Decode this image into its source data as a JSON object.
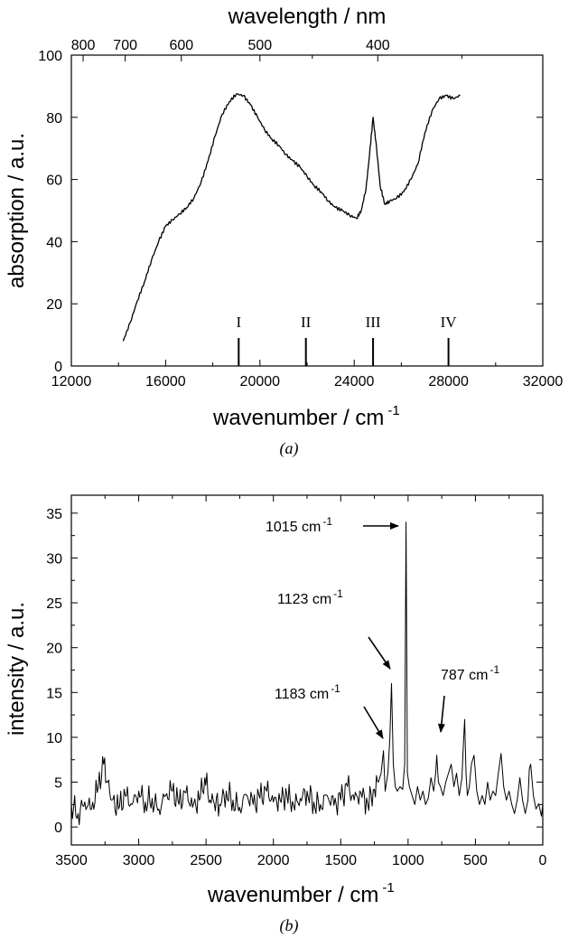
{
  "chart_data": [
    {
      "type": "line",
      "panel_label": "(a)",
      "xlabel": "wavenumber  /  cm",
      "xlabel_sup": "-1",
      "ylabel": "absorption  /  a.u.",
      "top_axis_label": "wavelength  /  nm",
      "xlim": [
        12000,
        32000
      ],
      "ylim": [
        0,
        100
      ],
      "x_ticks": [
        "12000",
        "16000",
        "20000",
        "24000",
        "28000",
        "32000"
      ],
      "y_ticks": [
        "0",
        "20",
        "40",
        "60",
        "80",
        "100"
      ],
      "top_ticks": [
        "800",
        "700",
        "600",
        "500",
        "400"
      ],
      "markers": [
        {
          "label": "I",
          "x": 19100
        },
        {
          "label": "II",
          "x": 21950
        },
        {
          "label": "III",
          "x": 24800
        },
        {
          "label": "IV",
          "x": 28000
        }
      ],
      "series": [
        {
          "x": [
            14200,
            14500,
            14800,
            15100,
            15400,
            15700,
            16000,
            16300,
            16600,
            16900,
            17200,
            17500,
            17800,
            18100,
            18400,
            18700,
            19000,
            19300,
            19600,
            19900,
            20200,
            20500,
            20800,
            21100,
            21400,
            21700,
            22000,
            22300,
            22600,
            22900,
            23200,
            23500,
            23800,
            24100,
            24300,
            24500,
            24650,
            24800,
            24950,
            25100,
            25300,
            25500,
            25800,
            26100,
            26400,
            26700,
            27000,
            27300,
            27600,
            27900,
            28200,
            28500
          ],
          "y": [
            8,
            14,
            21,
            27,
            34,
            40,
            45,
            47,
            49,
            51,
            54,
            59,
            66,
            74,
            81,
            85,
            87.5,
            87,
            84,
            80,
            76,
            73,
            71,
            68,
            66,
            64,
            61,
            58,
            56,
            53,
            51,
            50,
            48.5,
            47.5,
            50,
            57,
            68,
            80,
            70,
            58,
            52,
            53,
            54,
            56,
            60,
            65,
            75,
            82,
            86,
            87,
            86,
            87
          ]
        }
      ]
    },
    {
      "type": "line",
      "panel_label": "(b)",
      "xlabel": "wavenumber  /  cm",
      "xlabel_sup": "-1",
      "ylabel": "intensity  /  a.u.",
      "xlim": [
        3500,
        0
      ],
      "ylim": [
        -2,
        37
      ],
      "x_ticks": [
        "3500",
        "3000",
        "2500",
        "2000",
        "1500",
        "1000",
        "500",
        "0"
      ],
      "y_ticks": [
        "0",
        "5",
        "10",
        "15",
        "20",
        "25",
        "30",
        "35"
      ],
      "annotations": [
        {
          "label": "1015 cm",
          "sup": "-1",
          "x": 1015,
          "y": 34
        },
        {
          "label": "1123 cm",
          "sup": "-1",
          "x": 1123,
          "y": 16
        },
        {
          "label": "1183 cm",
          "sup": "-1",
          "x": 1183,
          "y": 8.5
        },
        {
          "label": "787 cm",
          "sup": "-1",
          "x": 787,
          "y": 8
        }
      ],
      "series": [
        {
          "x": [
            3500,
            3450,
            3400,
            3350,
            3300,
            3260,
            3230,
            3200,
            3150,
            3100,
            3050,
            3000,
            2950,
            2900,
            2850,
            2800,
            2750,
            2700,
            2650,
            2600,
            2550,
            2510,
            2470,
            2400,
            2350,
            2300,
            2250,
            2200,
            2150,
            2100,
            2050,
            2000,
            1950,
            1900,
            1850,
            1800,
            1750,
            1700,
            1650,
            1600,
            1550,
            1500,
            1450,
            1400,
            1350,
            1300,
            1250,
            1220,
            1200,
            1183,
            1170,
            1150,
            1135,
            1123,
            1110,
            1095,
            1080,
            1060,
            1040,
            1025,
            1015,
            1005,
            990,
            970,
            950,
            930,
            910,
            890,
            870,
            850,
            830,
            810,
            795,
            787,
            775,
            760,
            740,
            720,
            700,
            680,
            660,
            640,
            620,
            600,
            590,
            580,
            570,
            560,
            545,
            530,
            510,
            490,
            470,
            450,
            430,
            410,
            390,
            370,
            350,
            330,
            310,
            290,
            270,
            250,
            230,
            210,
            190,
            170,
            150,
            130,
            110,
            100,
            90,
            70,
            50,
            30,
            10,
            0
          ],
          "y": [
            2.5,
            1.5,
            2.8,
            2,
            4.5,
            7,
            5,
            3,
            2,
            3.5,
            2.5,
            4,
            2.8,
            3.2,
            2,
            3.5,
            4,
            2.5,
            3.8,
            2.2,
            3,
            5.5,
            3,
            2.5,
            4,
            3,
            2.2,
            3.6,
            2.5,
            3.2,
            4,
            2.8,
            3,
            3.6,
            2.4,
            3.2,
            4,
            2.8,
            2.5,
            3.5,
            2.4,
            3,
            4.5,
            3,
            3.8,
            2.6,
            4.2,
            5,
            6,
            8.5,
            4,
            6,
            10,
            16,
            7,
            4.5,
            4,
            4.5,
            4.2,
            7,
            34,
            6,
            4.5,
            3.5,
            2.5,
            4.5,
            3,
            4,
            2.5,
            3.2,
            5.5,
            4,
            6,
            8,
            5,
            4.5,
            3.5,
            5,
            6,
            7,
            4.5,
            6,
            3.5,
            5.5,
            9,
            12,
            6,
            3.5,
            4.5,
            7,
            8,
            4,
            2.5,
            3.5,
            2.5,
            5,
            3,
            4,
            3.5,
            6,
            8.2,
            4.5,
            3,
            4,
            2.5,
            1.5,
            3,
            5.5,
            3,
            1.5,
            3,
            6.5,
            7,
            3.5,
            2,
            2.6,
            1.2,
            2.5
          ]
        }
      ]
    }
  ]
}
